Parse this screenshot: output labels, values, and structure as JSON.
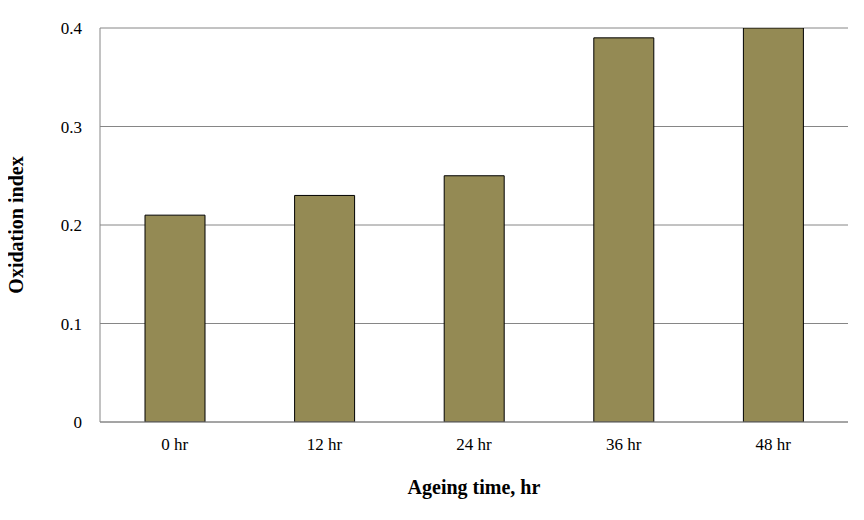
{
  "chart_data": {
    "type": "bar",
    "x_label": "Ageing time, hr",
    "y_label": "Oxidation index",
    "categories": [
      "0 hr",
      "12 hr",
      "24 hr",
      "36 hr",
      "48 hr"
    ],
    "values": [
      0.21,
      0.23,
      0.25,
      0.39,
      0.4
    ],
    "color": "#948a54",
    "ylim": [
      0,
      0.4
    ],
    "yticks": [
      0,
      0.1,
      0.2,
      0.3,
      0.4
    ],
    "grid": true
  }
}
